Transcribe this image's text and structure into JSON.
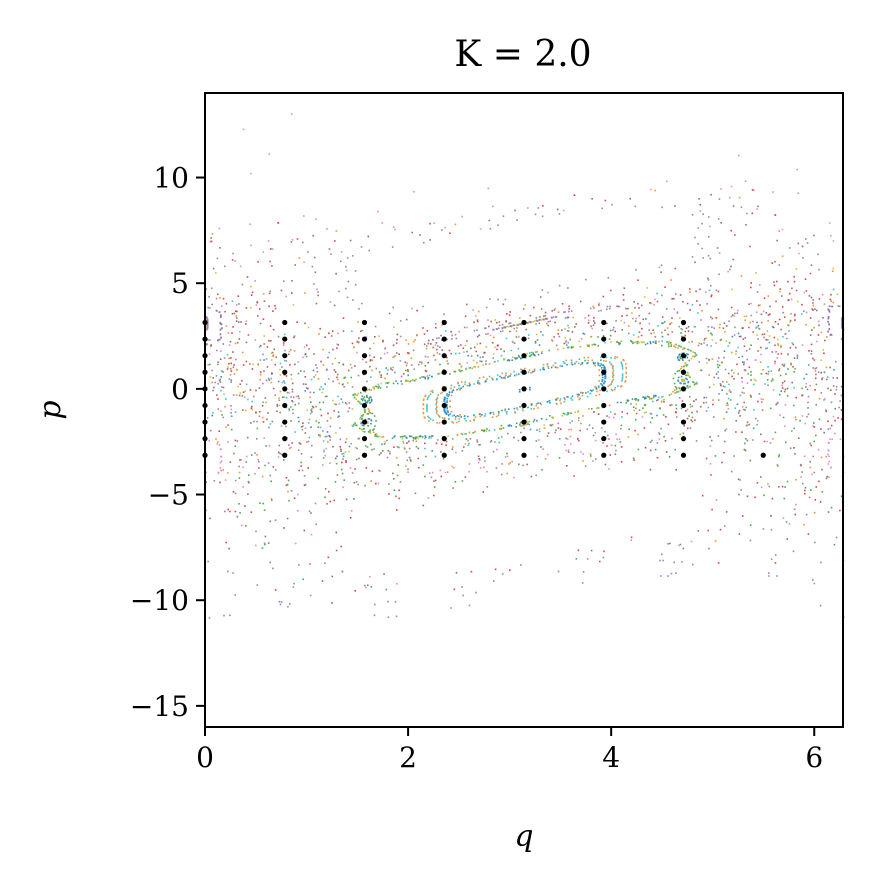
{
  "chart_data": {
    "type": "scatter",
    "title": "K = 2.0",
    "xlabel": "q",
    "ylabel": "p",
    "xlim": [
      0,
      6.2832
    ],
    "ylim": [
      -16,
      14
    ],
    "xticks": [
      0,
      2,
      4,
      6
    ],
    "yticks": [
      10,
      5,
      0,
      -5,
      -10,
      -15
    ],
    "xtick_labels": [
      "0",
      "2",
      "4",
      "6"
    ],
    "ytick_labels": [
      "10",
      "5",
      "0",
      "−5",
      "−10",
      "−15"
    ],
    "grid": false,
    "legend": "none",
    "initial_conditions": {
      "q": [
        0,
        0.7854,
        1.5708,
        2.3562,
        3.1416,
        3.927,
        4.7124
      ],
      "p": [
        -3.1416,
        -2.3562,
        -1.5708,
        -0.7854,
        0,
        0.7854,
        1.5708,
        2.3562,
        3.1416
      ],
      "extra_points": [
        {
          "q": 5.4978,
          "p": -3.1416
        }
      ],
      "color": "#000000"
    },
    "orbit_colors": [
      "#1f77b4",
      "#ff7f0e",
      "#2ca02c",
      "#d62728",
      "#9467bd",
      "#8c564b",
      "#e377c2",
      "#7f7f7f",
      "#bcbd22",
      "#17becf"
    ]
  }
}
